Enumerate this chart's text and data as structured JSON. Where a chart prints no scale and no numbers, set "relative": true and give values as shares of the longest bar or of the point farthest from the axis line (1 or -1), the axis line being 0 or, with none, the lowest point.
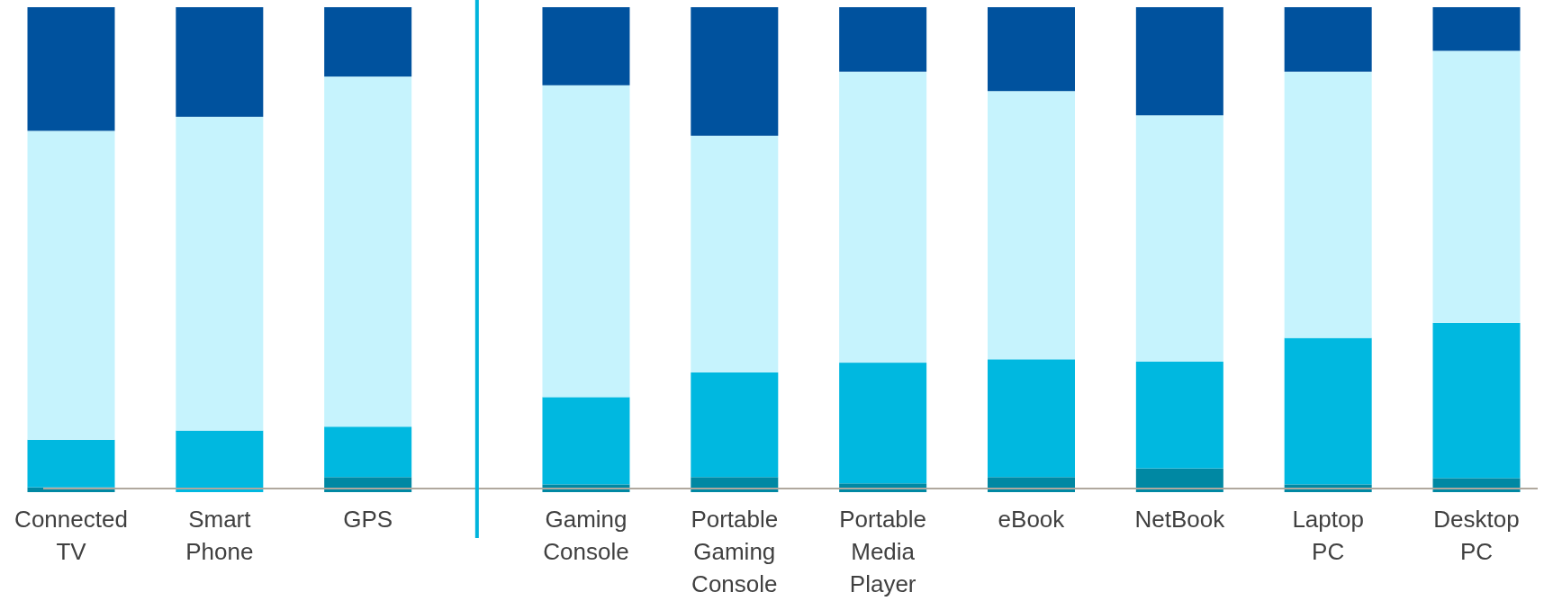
{
  "chart_data": {
    "type": "bar",
    "stacked": true,
    "relative": true,
    "categories": [
      "Connected TV",
      "Smart Phone",
      "GPS",
      "Gaming Console",
      "Portable Gaming Console",
      "Portable Media Player",
      "eBook",
      "NetBook",
      "Laptop PC",
      "Desktop PC"
    ],
    "series": [
      {
        "color": "#0088a3",
        "values": [
          0.01,
          0,
          0.031,
          0.016,
          0.031,
          0.018,
          0.031,
          0.049,
          0.016,
          0.029
        ]
      },
      {
        "color": "#00b8e0",
        "values": [
          0.098,
          0.127,
          0.104,
          0.18,
          0.216,
          0.249,
          0.243,
          0.22,
          0.302,
          0.32
        ]
      },
      {
        "color": "#c6f3fd",
        "values": [
          0.637,
          0.647,
          0.722,
          0.643,
          0.488,
          0.6,
          0.553,
          0.508,
          0.549,
          0.561
        ]
      },
      {
        "color": "#00529e",
        "values": [
          0.255,
          0.226,
          0.143,
          0.161,
          0.265,
          0.133,
          0.173,
          0.223,
          0.133,
          0.09
        ]
      }
    ]
  }
}
